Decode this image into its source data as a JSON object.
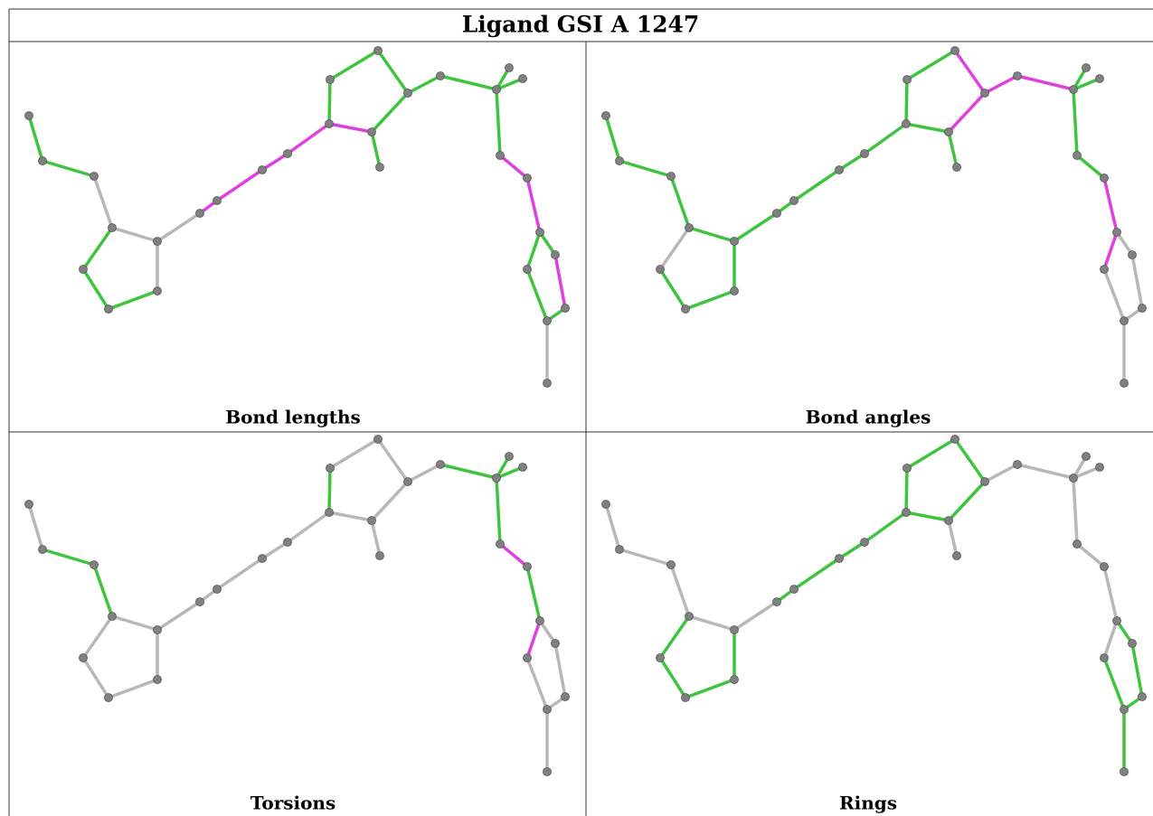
{
  "title": "Ligand GSI A 1247",
  "panels": [
    {
      "label": "Bond lengths"
    },
    {
      "label": "Bond angles"
    },
    {
      "label": "Torsions"
    },
    {
      "label": "Rings"
    }
  ]
}
